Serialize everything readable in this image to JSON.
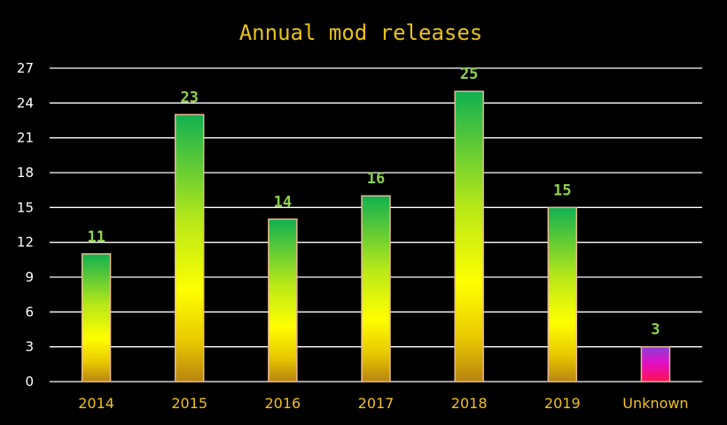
{
  "chart_data": {
    "type": "bar",
    "title": "Annual mod releases",
    "xlabel": "",
    "ylabel": "",
    "categories": [
      "2014",
      "2015",
      "2016",
      "2017",
      "2018",
      "2019",
      "Unknown"
    ],
    "values": [
      11,
      23,
      14,
      16,
      25,
      15,
      3
    ],
    "value_labels": [
      "11",
      "23",
      "14",
      "16",
      "25",
      "15",
      "3"
    ],
    "ylim": [
      0,
      27
    ],
    "yticks": [
      0,
      3,
      6,
      9,
      12,
      15,
      18,
      21,
      24,
      27
    ],
    "ytick_labels": [
      "0",
      "3",
      "6",
      "9",
      "12",
      "15",
      "18",
      "21",
      "24",
      "27"
    ],
    "grid": true,
    "colors": {
      "background": "#000000",
      "title": "#e8c21a",
      "tick_x": "#f0c020",
      "tick_y": "#ffffff",
      "data_label": "#8fd14f",
      "bar_gradient": [
        "#10b050",
        "#b8e818",
        "#ffff00",
        "#e8c800",
        "#b88410"
      ],
      "unknown_gradient": [
        "#8a3fd8",
        "#e010c8",
        "#ff1050"
      ]
    }
  }
}
